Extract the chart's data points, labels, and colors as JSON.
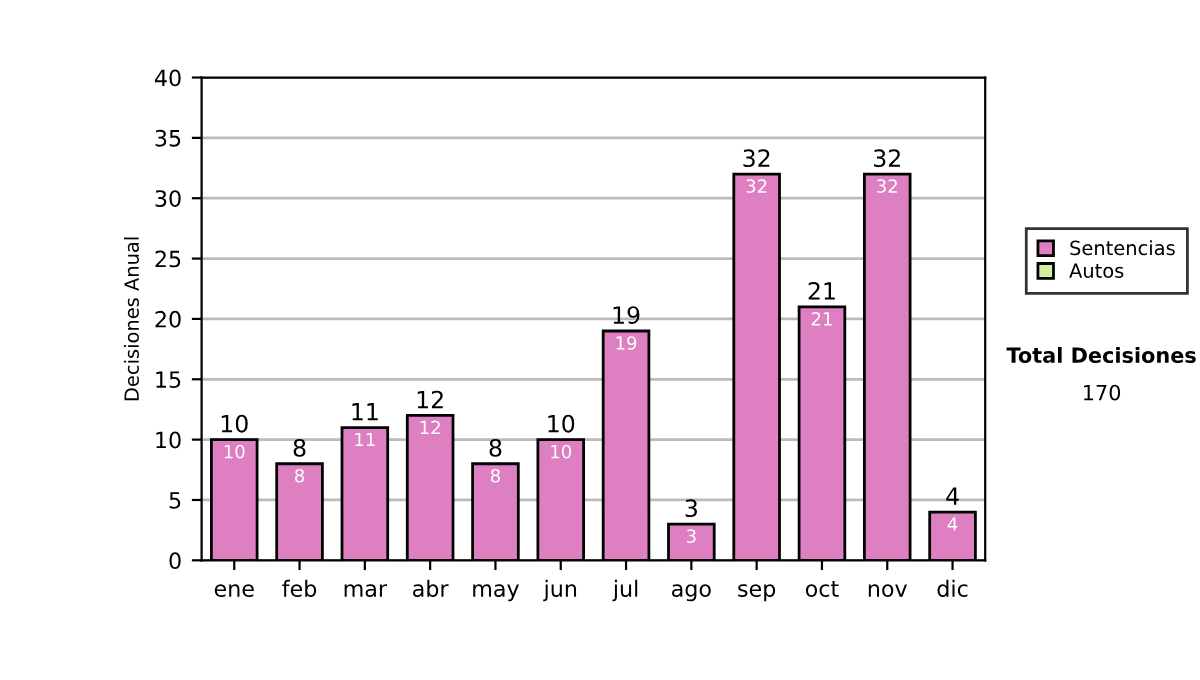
{
  "chart_data": {
    "type": "bar",
    "ylabel": "Decisiones Anual",
    "categories": [
      "ene",
      "feb",
      "mar",
      "abr",
      "may",
      "jun",
      "jul",
      "ago",
      "sep",
      "oct",
      "nov",
      "dic"
    ],
    "series": [
      {
        "name": "Sentencias",
        "color": "#dd7fc0",
        "values": [
          10,
          8,
          11,
          12,
          8,
          10,
          19,
          3,
          32,
          21,
          32,
          4
        ],
        "value_labels": [
          "10",
          "8",
          "11",
          "12",
          "8",
          "10",
          "19",
          "3",
          "32",
          "21",
          "32",
          "4"
        ]
      },
      {
        "name": "Autos",
        "color": "#d4eda0",
        "values": [
          null,
          null,
          null,
          null,
          null,
          null,
          null,
          null,
          null,
          null,
          null,
          null
        ]
      }
    ],
    "totals": [
      "10",
      "8",
      "11",
      "12",
      "8",
      "10",
      "19",
      "3",
      "32",
      "21",
      "32",
      "4"
    ],
    "ylim": [
      0,
      40
    ],
    "yticks": [
      0,
      5,
      10,
      15,
      20,
      25,
      30,
      35,
      40
    ],
    "grid": "y",
    "legend": "right",
    "annotations": [
      "Total Decisiones",
      "170"
    ]
  }
}
